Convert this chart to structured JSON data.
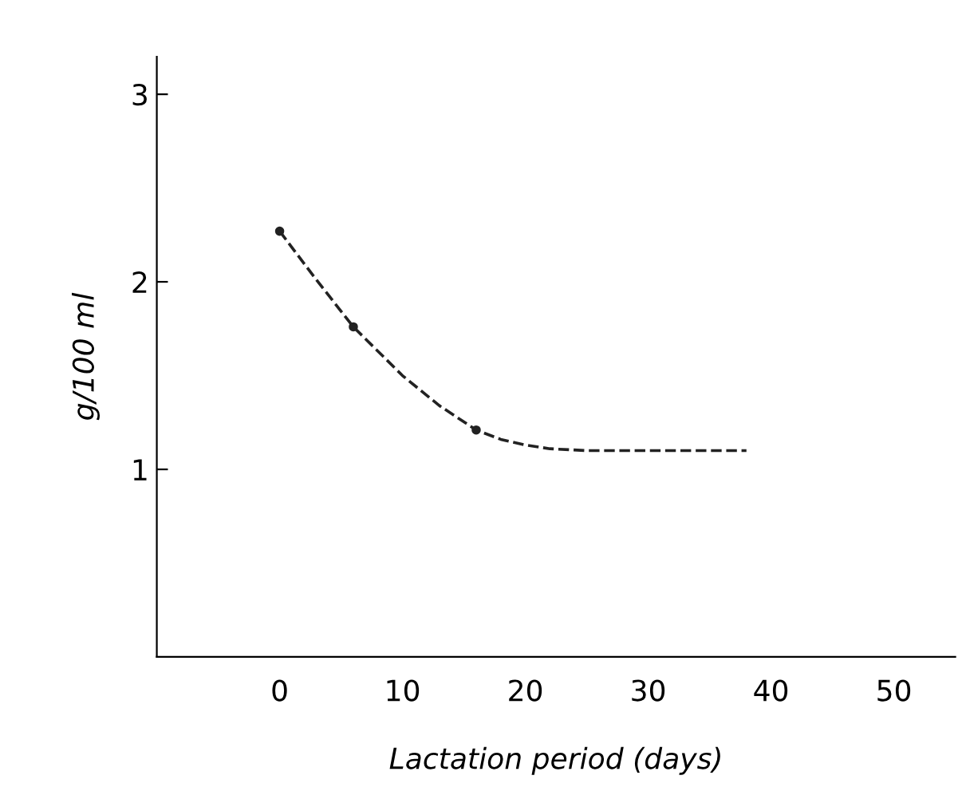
{
  "chart_data": {
    "type": "line",
    "xlabel": "Lactation period (days)",
    "ylabel": "g/100 ml",
    "xlim": [
      -10,
      55
    ],
    "xticks": [
      0,
      10,
      20,
      30,
      40,
      50
    ],
    "ylim": [
      0,
      3.2
    ],
    "yticks": [
      1,
      2,
      3
    ],
    "grid": false,
    "legend": false,
    "series": [
      {
        "color": "#222222",
        "line_style": "dashed",
        "marker": "none",
        "x": [
          0,
          3,
          6,
          10,
          13,
          16,
          18,
          20,
          22,
          25,
          30,
          38
        ],
        "values": [
          2.27,
          2.01,
          1.76,
          1.5,
          1.34,
          1.21,
          1.16,
          1.13,
          1.11,
          1.1,
          1.1,
          1.1
        ]
      },
      {
        "type": "scatter",
        "color": "#222222",
        "marker": "circle",
        "x": [
          0,
          6,
          16
        ],
        "values": [
          2.27,
          1.76,
          1.21
        ]
      }
    ]
  }
}
